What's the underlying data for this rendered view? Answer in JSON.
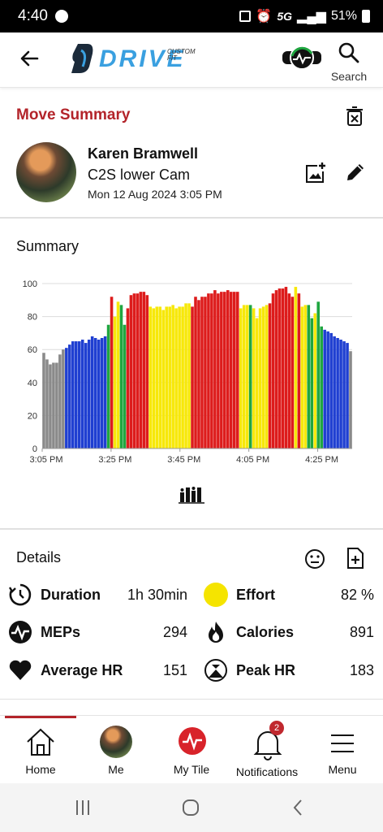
{
  "status_bar": {
    "time": "4:40",
    "network": "5G",
    "battery": "51%"
  },
  "app_bar": {
    "logo_text": "DRIVE",
    "logo_subtext": "CUSTOM FIT",
    "search_label": "Search",
    "icons": [
      "back-arrow-icon",
      "heart-rate-strap-icon",
      "search-icon"
    ]
  },
  "move": {
    "section_title": "Move Summary",
    "name": "Karen Bramwell",
    "activity": "C2S lower Cam",
    "datetime": "Mon 12 Aug 2024 3:05 PM"
  },
  "summary": {
    "title": "Summary"
  },
  "chart_data": {
    "type": "bar",
    "title": "",
    "xlabel": "",
    "ylabel": "",
    "ylim": [
      0,
      100
    ],
    "yticks": [
      0,
      20,
      40,
      60,
      80,
      100
    ],
    "xticks": [
      "3:05 PM",
      "3:25 PM",
      "3:45 PM",
      "4:05 PM",
      "4:25 PM"
    ],
    "grid": true,
    "legend": "none",
    "zone_colors": {
      "gray": "#8a8a8a",
      "blue": "#1f3fd1",
      "green": "#1fa640",
      "yellow": "#f7e80a",
      "red": "#dd1c1c"
    },
    "values": [
      58,
      54,
      51,
      52,
      52,
      57,
      60,
      61,
      63,
      65,
      65,
      65,
      66,
      64,
      66,
      68,
      67,
      66,
      67,
      68,
      75,
      92,
      80,
      89,
      87,
      75,
      85,
      93,
      94,
      94,
      95,
      95,
      93,
      86,
      85,
      86,
      86,
      84,
      86,
      86,
      87,
      85,
      86,
      86,
      88,
      88,
      86,
      92,
      90,
      92,
      92,
      94,
      94,
      96,
      94,
      95,
      95,
      96,
      95,
      95,
      95,
      85,
      87,
      87,
      87,
      85,
      79,
      85,
      86,
      87,
      88,
      94,
      96,
      97,
      97,
      98,
      94,
      92,
      98,
      94,
      86,
      87,
      87,
      79,
      82,
      89,
      74,
      72,
      71,
      70,
      68,
      67,
      66,
      65,
      64,
      59
    ],
    "colors": [
      "gray",
      "gray",
      "gray",
      "gray",
      "gray",
      "gray",
      "gray",
      "blue",
      "blue",
      "blue",
      "blue",
      "blue",
      "blue",
      "blue",
      "blue",
      "blue",
      "blue",
      "blue",
      "blue",
      "blue",
      "green",
      "red",
      "yellow",
      "yellow",
      "green",
      "green",
      "red",
      "red",
      "red",
      "red",
      "red",
      "red",
      "red",
      "yellow",
      "yellow",
      "yellow",
      "yellow",
      "yellow",
      "yellow",
      "yellow",
      "yellow",
      "yellow",
      "yellow",
      "yellow",
      "yellow",
      "yellow",
      "red",
      "red",
      "red",
      "red",
      "red",
      "red",
      "red",
      "red",
      "red",
      "red",
      "red",
      "red",
      "red",
      "red",
      "red",
      "yellow",
      "yellow",
      "yellow",
      "green",
      "yellow",
      "yellow",
      "yellow",
      "yellow",
      "yellow",
      "red",
      "red",
      "red",
      "red",
      "red",
      "red",
      "red",
      "red",
      "yellow",
      "red",
      "yellow",
      "yellow",
      "green",
      "green",
      "yellow",
      "green",
      "green",
      "blue",
      "blue",
      "blue",
      "blue",
      "blue",
      "blue",
      "blue",
      "blue",
      "gray",
      "gray"
    ]
  },
  "details": {
    "title": "Details",
    "stats": {
      "duration": {
        "label": "Duration",
        "value": "1h 30min"
      },
      "effort": {
        "label": "Effort",
        "value": "82 %"
      },
      "meps": {
        "label": "MEPs",
        "value": "294"
      },
      "calories": {
        "label": "Calories",
        "value": "891"
      },
      "avg_hr": {
        "label": "Average HR",
        "value": "151"
      },
      "peak_hr": {
        "label": "Peak HR",
        "value": "183"
      }
    }
  },
  "bottom_nav": {
    "home": "Home",
    "me": "Me",
    "my_tile": "My Tile",
    "notifications": "Notifications",
    "notifications_badge": "2",
    "menu": "Menu"
  },
  "colors": {
    "accent_red": "#b3242a",
    "effort_yellow": "#f5e400"
  }
}
